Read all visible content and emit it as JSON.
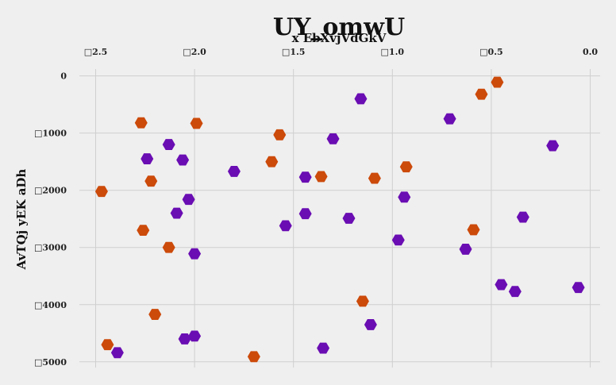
{
  "chart_data": {
    "type": "scatter",
    "title": "UY_omwU",
    "xlabel": "x EbXvjVdGkV",
    "ylabel": "AvTQj yEK aDh",
    "x_axis_position": "top",
    "y_inverted": true,
    "grid": true,
    "legend": "none",
    "xlim": [
      -2.55,
      0.05
    ],
    "ylim": [
      -5100,
      120
    ],
    "x_ticks": [
      {
        "value": -2.5,
        "label": "□2.5"
      },
      {
        "value": -2.0,
        "label": "□2.0"
      },
      {
        "value": -1.5,
        "label": "□1.5"
      },
      {
        "value": -1.0,
        "label": "□1.0"
      },
      {
        "value": -0.5,
        "label": "□0.5"
      },
      {
        "value": 0.0,
        "label": "0.0"
      }
    ],
    "y_ticks": [
      {
        "value": 0,
        "label": "0"
      },
      {
        "value": -1000,
        "label": "□1000"
      },
      {
        "value": -2000,
        "label": "□2000"
      },
      {
        "value": -3000,
        "label": "□3000"
      },
      {
        "value": -4000,
        "label": "□4000"
      },
      {
        "value": -5000,
        "label": "□5000"
      }
    ],
    "series": [
      {
        "color": "#cc4a0a",
        "marker": "hexagon",
        "points": [
          {
            "x": -2.27,
            "y": -820
          },
          {
            "x": -1.99,
            "y": -830
          },
          {
            "x": -1.57,
            "y": -1030
          },
          {
            "x": -0.55,
            "y": -320
          },
          {
            "x": -0.47,
            "y": -110
          },
          {
            "x": -1.61,
            "y": -1500
          },
          {
            "x": -1.36,
            "y": -1760
          },
          {
            "x": -1.09,
            "y": -1790
          },
          {
            "x": -0.93,
            "y": -1590
          },
          {
            "x": -2.22,
            "y": -1840
          },
          {
            "x": -2.47,
            "y": -2020
          },
          {
            "x": -2.26,
            "y": -2700
          },
          {
            "x": -2.13,
            "y": -3000
          },
          {
            "x": -0.59,
            "y": -2690
          },
          {
            "x": -1.15,
            "y": -3940
          },
          {
            "x": -2.2,
            "y": -4170
          },
          {
            "x": -2.44,
            "y": -4700
          },
          {
            "x": -1.7,
            "y": -4910
          }
        ]
      },
      {
        "color": "#6a0db3",
        "marker": "hexagon",
        "points": [
          {
            "x": -1.16,
            "y": -400
          },
          {
            "x": -0.71,
            "y": -750
          },
          {
            "x": -2.13,
            "y": -1200
          },
          {
            "x": -2.24,
            "y": -1450
          },
          {
            "x": -2.06,
            "y": -1470
          },
          {
            "x": -1.3,
            "y": -1100
          },
          {
            "x": -1.8,
            "y": -1670
          },
          {
            "x": -1.44,
            "y": -1770
          },
          {
            "x": -0.19,
            "y": -1220
          },
          {
            "x": -2.03,
            "y": -2160
          },
          {
            "x": -2.09,
            "y": -2400
          },
          {
            "x": -0.94,
            "y": -2120
          },
          {
            "x": -1.44,
            "y": -2410
          },
          {
            "x": -1.22,
            "y": -2490
          },
          {
            "x": -1.54,
            "y": -2620
          },
          {
            "x": -0.34,
            "y": -2470
          },
          {
            "x": -0.97,
            "y": -2870
          },
          {
            "x": -0.63,
            "y": -3030
          },
          {
            "x": -2.0,
            "y": -3110
          },
          {
            "x": -0.45,
            "y": -3650
          },
          {
            "x": -0.38,
            "y": -3770
          },
          {
            "x": -0.06,
            "y": -3700
          },
          {
            "x": -1.11,
            "y": -4350
          },
          {
            "x": -2.05,
            "y": -4600
          },
          {
            "x": -2.0,
            "y": -4550
          },
          {
            "x": -1.35,
            "y": -4760
          },
          {
            "x": -2.39,
            "y": -4840
          }
        ]
      }
    ]
  }
}
